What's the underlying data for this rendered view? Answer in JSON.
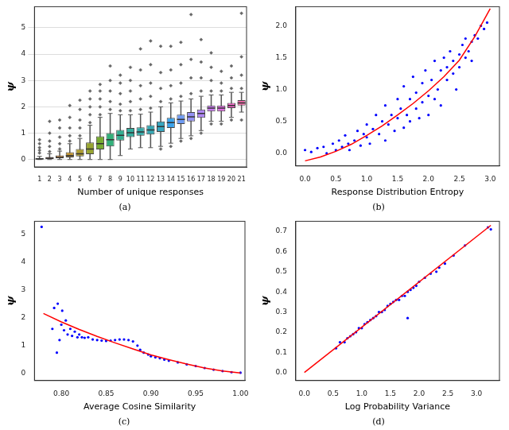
{
  "chart_data": [
    {
      "type": "box",
      "caption": "(a)",
      "x_label": "Number of unique responses",
      "y_label": "ψ",
      "categories": [
        1,
        2,
        3,
        4,
        5,
        6,
        7,
        8,
        9,
        10,
        11,
        12,
        13,
        14,
        15,
        16,
        17,
        18,
        19,
        20,
        21
      ],
      "boxes": {
        "whislo": [
          0,
          0,
          0,
          0,
          0,
          0,
          0,
          0,
          0.15,
          0.4,
          0.45,
          0.45,
          0.5,
          0.62,
          0.8,
          0.9,
          1.1,
          1.45,
          1.45,
          1.6,
          1.8
        ],
        "q1": [
          0.0,
          0.02,
          0.05,
          0.08,
          0.12,
          0.2,
          0.38,
          0.5,
          0.72,
          0.85,
          0.9,
          0.95,
          1.05,
          1.2,
          1.35,
          1.45,
          1.58,
          1.82,
          1.82,
          1.95,
          2.05
        ],
        "median": [
          0.02,
          0.05,
          0.08,
          0.15,
          0.22,
          0.4,
          0.6,
          0.75,
          0.92,
          1.02,
          1.05,
          1.12,
          1.25,
          1.4,
          1.52,
          1.62,
          1.75,
          1.95,
          1.95,
          2.05,
          2.15
        ],
        "q3": [
          0.05,
          0.1,
          0.16,
          0.28,
          0.4,
          0.65,
          0.88,
          1.0,
          1.12,
          1.2,
          1.22,
          1.3,
          1.45,
          1.58,
          1.7,
          1.8,
          1.9,
          2.05,
          2.05,
          2.15,
          2.25
        ],
        "whishi": [
          0.12,
          0.22,
          0.32,
          0.6,
          0.8,
          1.3,
          1.6,
          1.75,
          1.7,
          1.7,
          1.72,
          1.8,
          2.0,
          2.15,
          2.22,
          2.3,
          2.4,
          2.45,
          2.45,
          2.55,
          2.55
        ]
      },
      "outliers": [
        [
          0.25,
          0.35,
          0.45,
          0.6,
          0.75
        ],
        [
          0.3,
          0.5,
          0.7,
          1.0,
          1.45
        ],
        [
          0.4,
          0.6,
          0.85,
          1.2,
          1.5
        ],
        [
          0.7,
          0.9,
          1.2,
          1.6,
          2.05
        ],
        [
          0.9,
          1.2,
          1.5,
          1.9,
          2.25
        ],
        [
          1.4,
          1.7,
          2.0,
          2.3,
          2.6
        ],
        [
          1.7,
          2.0,
          2.3,
          2.6,
          2.85
        ],
        [
          1.9,
          2.2,
          2.6,
          3.0,
          3.55
        ],
        [
          1.85,
          2.1,
          2.5,
          2.9,
          3.2
        ],
        [
          1.85,
          2.2,
          2.6,
          3.0,
          3.5
        ],
        [
          1.9,
          2.3,
          2.8,
          3.4,
          4.2
        ],
        [
          1.95,
          2.4,
          2.9,
          3.6,
          4.5
        ],
        [
          0.4,
          2.2,
          2.7,
          3.3,
          4.3
        ],
        [
          0.5,
          2.3,
          2.8,
          3.4,
          4.3
        ],
        [
          0.7,
          2.4,
          2.9,
          3.6,
          4.45
        ],
        [
          0.8,
          2.5,
          3.1,
          3.8,
          5.5
        ],
        [
          1.0,
          2.6,
          3.1,
          3.7,
          4.55
        ],
        [
          1.35,
          2.6,
          3.0,
          3.5,
          4.05
        ],
        [
          1.35,
          2.6,
          2.9,
          3.35
        ],
        [
          1.5,
          2.7,
          3.1,
          3.55
        ],
        [
          1.5,
          2.7,
          3.2,
          3.9,
          5.55
        ]
      ],
      "marker": "diamond",
      "colors": [
        "#f77189",
        "#f7754f",
        "#dc8932",
        "#c39532",
        "#ae9d31",
        "#97a431",
        "#77ab31",
        "#33b07a",
        "#34ae91",
        "#35ac9e",
        "#36aaa9",
        "#37a8b4",
        "#38a6c0",
        "#3ba3ec",
        "#6e9bf4",
        "#9491f4",
        "#b088f4",
        "#cc7af4",
        "#e16ce4",
        "#f565cc",
        "#f66bad"
      ],
      "ylim": [
        -0.28,
        5.8
      ],
      "yticks": [
        0,
        1,
        2,
        3,
        4,
        5
      ],
      "grid": true
    },
    {
      "type": "scatter",
      "caption": "(b)",
      "x_label": "Response Distribution Entropy",
      "y_label": "ψ",
      "x": [
        0.0,
        0.1,
        0.2,
        0.3,
        0.35,
        0.45,
        0.5,
        0.55,
        0.6,
        0.65,
        0.7,
        0.72,
        0.8,
        0.85,
        0.9,
        0.95,
        1.0,
        1.0,
        1.05,
        1.1,
        1.15,
        1.2,
        1.25,
        1.3,
        1.3,
        1.35,
        1.4,
        1.45,
        1.5,
        1.5,
        1.55,
        1.6,
        1.6,
        1.65,
        1.7,
        1.7,
        1.75,
        1.8,
        1.8,
        1.85,
        1.9,
        1.9,
        1.95,
        2.0,
        2.0,
        2.05,
        2.1,
        2.1,
        2.15,
        2.2,
        2.2,
        2.25,
        2.3,
        2.3,
        2.35,
        2.4,
        2.4,
        2.45,
        2.5,
        2.5,
        2.55,
        2.6,
        2.6,
        2.65,
        2.7,
        2.7,
        2.75,
        2.8,
        2.85,
        2.9,
        2.95
      ],
      "values": [
        0.05,
        0.02,
        0.08,
        0.1,
        0.0,
        0.15,
        0.05,
        0.2,
        0.1,
        0.28,
        0.15,
        0.05,
        0.2,
        0.35,
        0.12,
        0.3,
        0.25,
        0.45,
        0.15,
        0.38,
        0.6,
        0.3,
        0.5,
        0.2,
        0.75,
        0.45,
        0.6,
        0.35,
        0.85,
        0.55,
        0.7,
        0.4,
        1.05,
        0.6,
        0.85,
        0.5,
        1.2,
        0.7,
        0.95,
        0.55,
        1.1,
        0.8,
        1.3,
        0.9,
        0.6,
        1.15,
        1.45,
        0.85,
        1.0,
        1.3,
        0.75,
        1.5,
        1.15,
        1.35,
        1.6,
        1.25,
        1.45,
        1.0,
        1.55,
        1.35,
        1.7,
        1.5,
        1.8,
        1.6,
        1.75,
        1.45,
        1.85,
        1.8,
        2.0,
        1.95,
        2.05
      ],
      "color": "#0000ff",
      "marker": "circle",
      "fit": {
        "x": [
          0,
          0.25,
          0.5,
          0.75,
          1.0,
          1.25,
          1.5,
          1.75,
          2.0,
          2.25,
          2.5,
          2.75,
          3.0
        ],
        "values": [
          -0.12,
          -0.06,
          0.03,
          0.14,
          0.28,
          0.43,
          0.6,
          0.78,
          0.98,
          1.2,
          1.46,
          1.83,
          2.27
        ],
        "color": "#ff0000",
        "line_style": "solid"
      },
      "xlim": [
        -0.15,
        3.15
      ],
      "xticks": [
        {
          "value": 0,
          "label": "0.0"
        },
        0.5,
        {
          "value": 1,
          "label": "1.0"
        },
        1.5,
        {
          "value": 2,
          "label": "2.0"
        },
        2.5,
        {
          "value": 3,
          "label": "3.0"
        }
      ],
      "ylim": [
        -0.2,
        2.3
      ],
      "yticks": [
        {
          "value": 0,
          "label": "0.0"
        },
        0.5,
        {
          "value": 1,
          "label": "1.0"
        },
        1.5,
        {
          "value": 2,
          "label": "2.0"
        }
      ],
      "grid": false
    },
    {
      "type": "scatter",
      "caption": "(c)",
      "x_label": "Average Cosine Similarity",
      "y_label": "ψ",
      "x": [
        0.778,
        0.79,
        0.792,
        0.795,
        0.796,
        0.798,
        0.8,
        0.801,
        0.803,
        0.805,
        0.807,
        0.81,
        0.812,
        0.815,
        0.818,
        0.82,
        0.823,
        0.826,
        0.83,
        0.835,
        0.84,
        0.845,
        0.85,
        0.855,
        0.86,
        0.865,
        0.87,
        0.875,
        0.88,
        0.885,
        0.888,
        0.892,
        0.897,
        0.9,
        0.905,
        0.91,
        0.915,
        0.92,
        0.93,
        0.94,
        0.95,
        0.96,
        0.97,
        0.98,
        0.99,
        1.0
      ],
      "values": [
        5.25,
        1.6,
        2.35,
        0.75,
        2.5,
        1.2,
        1.75,
        2.25,
        1.55,
        1.9,
        1.4,
        1.6,
        1.35,
        1.5,
        1.3,
        1.4,
        1.3,
        1.28,
        1.3,
        1.22,
        1.2,
        1.18,
        1.17,
        1.18,
        1.2,
        1.22,
        1.22,
        1.2,
        1.15,
        1.0,
        0.85,
        0.75,
        0.68,
        0.62,
        0.58,
        0.55,
        0.5,
        0.46,
        0.4,
        0.33,
        0.27,
        0.2,
        0.14,
        0.09,
        0.05,
        0.03
      ],
      "color": "#0000ff",
      "marker": "circle",
      "fit": {
        "x": [
          0.78,
          0.8,
          0.82,
          0.84,
          0.86,
          0.88,
          0.9,
          0.92,
          0.94,
          0.96,
          0.98,
          1.0
        ],
        "values": [
          2.15,
          1.85,
          1.58,
          1.33,
          1.1,
          0.88,
          0.67,
          0.5,
          0.34,
          0.2,
          0.09,
          0.02
        ],
        "color": "#ff0000",
        "line_style": "solid"
      },
      "xlim": [
        0.77,
        1.005
      ],
      "xticks": [
        {
          "value": 0.8,
          "label": "0.80"
        },
        0.85,
        {
          "value": 0.9,
          "label": "0.90"
        },
        0.95,
        {
          "value": 1,
          "label": "1.00"
        }
      ],
      "ylim": [
        -0.25,
        5.45
      ],
      "yticks": [
        0,
        1,
        2,
        3,
        4,
        5
      ],
      "grid": false
    },
    {
      "type": "scatter",
      "caption": "(d)",
      "x_label": "Log Probability Variance",
      "y_label": "ψ",
      "x": [
        0.55,
        0.62,
        0.7,
        0.75,
        0.8,
        0.85,
        0.9,
        0.95,
        1.0,
        1.05,
        1.1,
        1.15,
        1.2,
        1.25,
        1.3,
        1.35,
        1.4,
        1.45,
        1.5,
        1.55,
        1.6,
        1.65,
        1.7,
        1.75,
        1.8,
        1.8,
        1.85,
        1.9,
        1.95,
        2.0,
        2.1,
        2.2,
        2.3,
        2.35,
        2.45,
        2.6,
        2.8,
        3.2,
        3.25
      ],
      "values": [
        0.12,
        0.15,
        0.15,
        0.17,
        0.18,
        0.19,
        0.2,
        0.22,
        0.22,
        0.24,
        0.25,
        0.26,
        0.27,
        0.28,
        0.3,
        0.3,
        0.31,
        0.33,
        0.34,
        0.35,
        0.36,
        0.36,
        0.38,
        0.38,
        0.4,
        0.27,
        0.41,
        0.42,
        0.43,
        0.45,
        0.47,
        0.49,
        0.5,
        0.52,
        0.54,
        0.58,
        0.63,
        0.72,
        0.71
      ],
      "color": "#0000ff",
      "marker": "circle",
      "fit": {
        "x": [
          0,
          3.25
        ],
        "values": [
          0,
          0.73
        ],
        "color": "#ff0000",
        "line_style": "solid"
      },
      "xlim": [
        -0.15,
        3.4
      ],
      "xticks": [
        {
          "value": 0,
          "label": "0.0"
        },
        0.5,
        {
          "value": 1,
          "label": "1.0"
        },
        1.5,
        {
          "value": 2,
          "label": "2.0"
        },
        2.5,
        {
          "value": 3,
          "label": "3.0"
        }
      ],
      "ylim": [
        -0.04,
        0.75
      ],
      "yticks": [
        {
          "value": 0,
          "label": "0.0"
        },
        0.1,
        0.2,
        0.3,
        0.4,
        0.5,
        0.6,
        0.7
      ],
      "grid": false
    }
  ]
}
